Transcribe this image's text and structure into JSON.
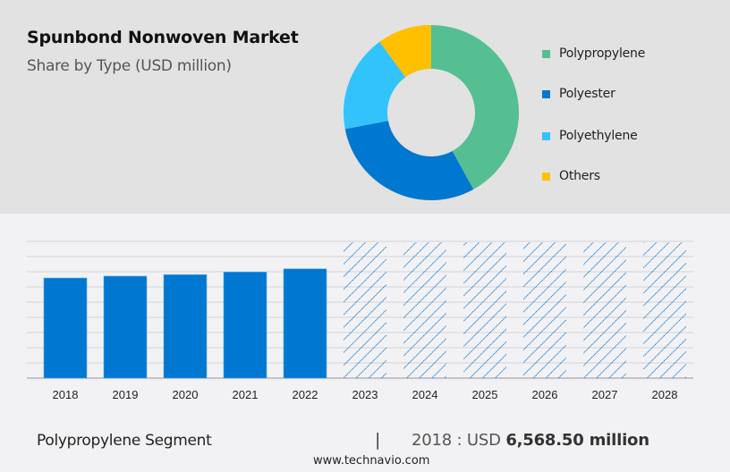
{
  "header": {
    "title": "Spunbond Nonwoven Market",
    "subtitle": "Share by Type (USD million)"
  },
  "legend": [
    {
      "label": "Polypropylene",
      "color": "#55bf93"
    },
    {
      "label": "Polyester",
      "color": "#0077d0"
    },
    {
      "label": "Polyethylene",
      "color": "#33c3fb"
    },
    {
      "label": "Others",
      "color": "#ffc000"
    }
  ],
  "footer": {
    "segment_label": "Polypropylene Segment",
    "separator": "|",
    "value_prefix": "2018 : USD ",
    "value_bold": "6,568.50 million",
    "website": "www.technavio.com"
  },
  "chart_data": [
    {
      "type": "pie",
      "subtype": "donut",
      "title": "Spunbond Nonwoven Market",
      "subtitle": "Share by Type (USD million)",
      "categories": [
        "Polypropylene",
        "Polyester",
        "Polyethylene",
        "Others"
      ],
      "values": [
        42,
        30,
        18,
        10
      ],
      "colors": [
        "#55bf93",
        "#0077d0",
        "#33c3fb",
        "#ffc000"
      ],
      "legend_position": "right"
    },
    {
      "type": "bar",
      "title": "Polypropylene Segment",
      "categories": [
        "2018",
        "2019",
        "2020",
        "2021",
        "2022",
        "2023",
        "2024",
        "2025",
        "2026",
        "2027",
        "2028"
      ],
      "values": [
        6568.5,
        6690,
        6790,
        6960,
        7170,
        null,
        null,
        null,
        null,
        null,
        null
      ],
      "forecast": [
        false,
        false,
        false,
        false,
        false,
        true,
        true,
        true,
        true,
        true,
        true
      ],
      "forecast_style": "hatched, full height (values not disclosed)",
      "annotation": "2018 : USD 6,568.50 million",
      "xlabel": "",
      "ylabel": "",
      "yticks_visible": false,
      "grid": true,
      "bar_color": "#0077d0"
    }
  ]
}
